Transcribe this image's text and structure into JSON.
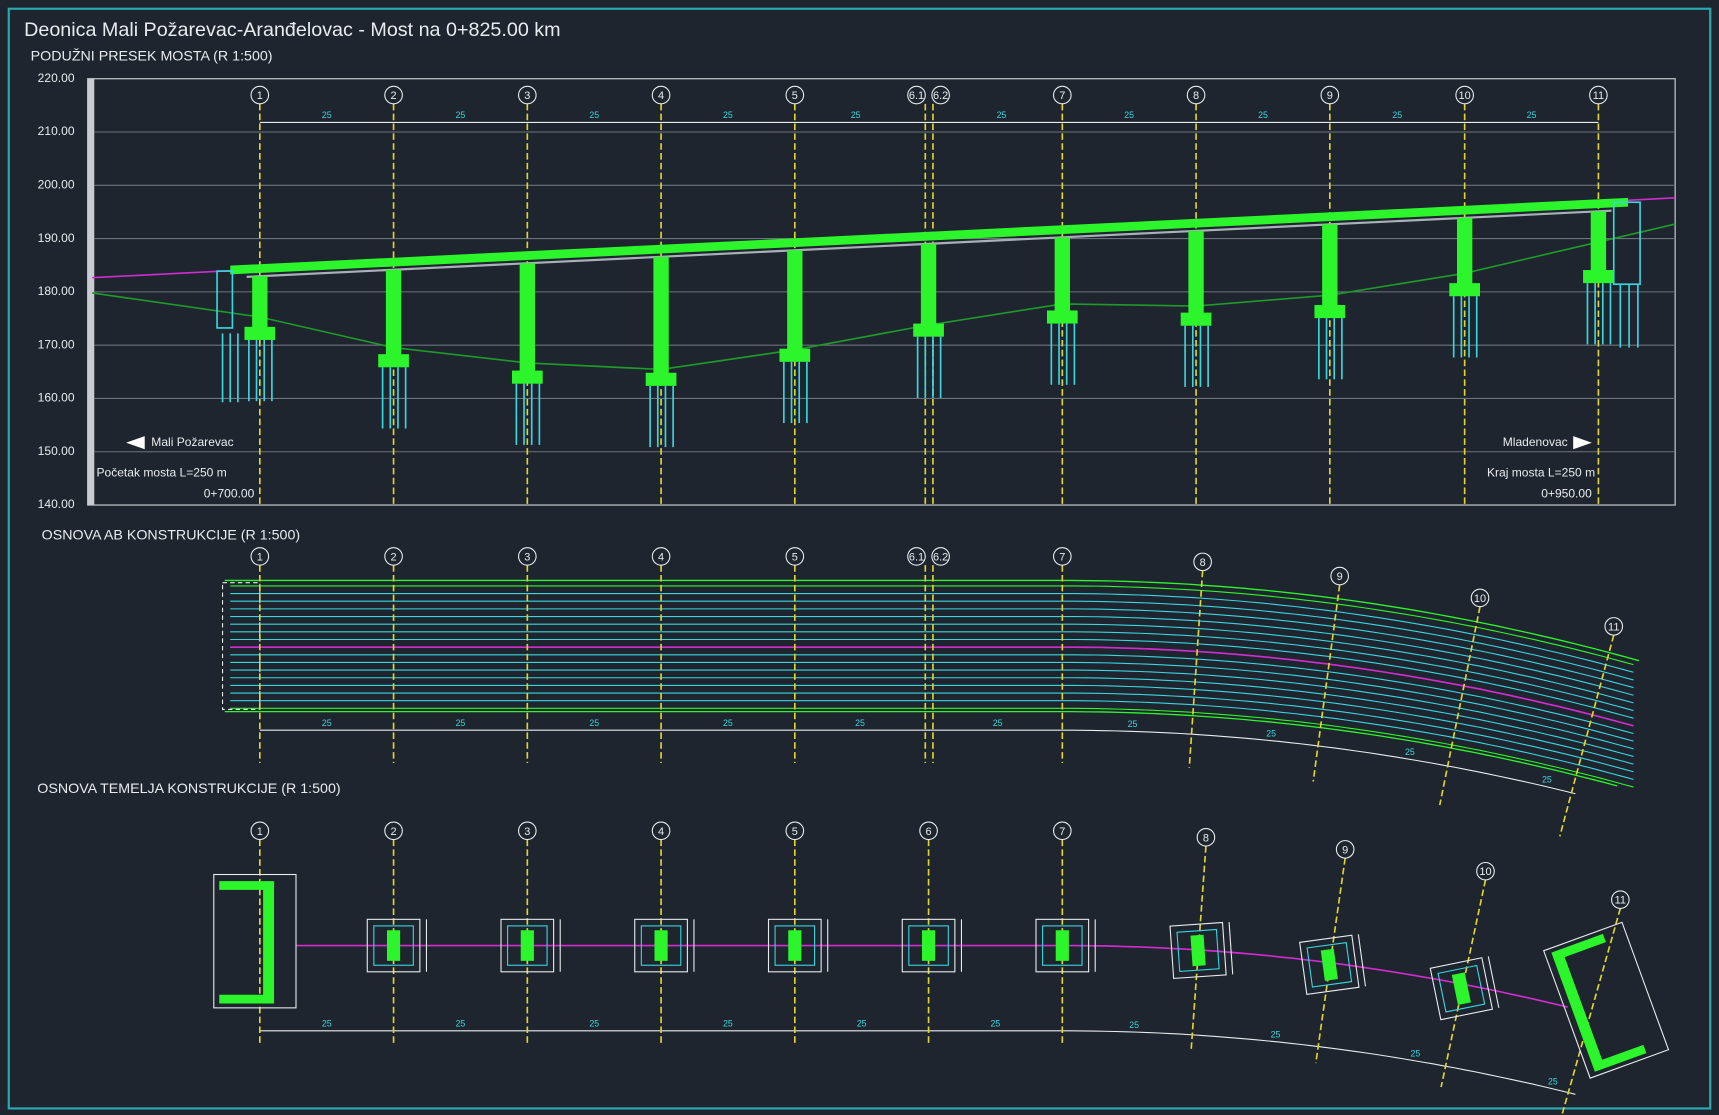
{
  "header": {
    "title": "Deonica Mali Požarevac-Aranđelovac - Most na 0+825.00 km"
  },
  "elevation": {
    "title": "PODUŽNI PRESEK MOSTA (R 1:500)",
    "levels": [
      "220.00",
      "210.00",
      "200.00",
      "190.00",
      "180.00",
      "170.00",
      "160.00",
      "150.00",
      "140.00"
    ],
    "piers": [
      "1",
      "2",
      "3",
      "4",
      "5",
      "6.1",
      "6.2",
      "7",
      "8",
      "9",
      "10",
      "11"
    ],
    "spans": [
      "25",
      "25",
      "25",
      "25",
      "25",
      "25",
      "25",
      "25",
      "25",
      "25"
    ],
    "start": {
      "direction": "Mali Požarevac",
      "length": "Početak mosta L=250 m",
      "station": "0+700.00"
    },
    "end": {
      "direction": "Mladenovac",
      "length": "Kraj mosta L=250 m",
      "station": "0+950.00"
    }
  },
  "plan": {
    "title": "OSNOVA AB KONSTRUKCIJE   (R 1:500)",
    "piers": [
      "1",
      "2",
      "3",
      "4",
      "5",
      "6.1",
      "6.2",
      "7",
      "8",
      "9",
      "10",
      "11"
    ],
    "spans": [
      "25",
      "25",
      "25",
      "25",
      "25",
      "25",
      "25",
      "25",
      "25",
      "25"
    ]
  },
  "foundation": {
    "title": "OSNOVA TEMELJA KONSTRUKCIJE  (R 1:500)",
    "piers": [
      "1",
      "2",
      "3",
      "4",
      "5",
      "6",
      "7",
      "8",
      "9",
      "10",
      "11"
    ],
    "spans": [
      "25",
      "25",
      "25",
      "25",
      "25",
      "25",
      "25",
      "25",
      "25",
      "25"
    ]
  }
}
